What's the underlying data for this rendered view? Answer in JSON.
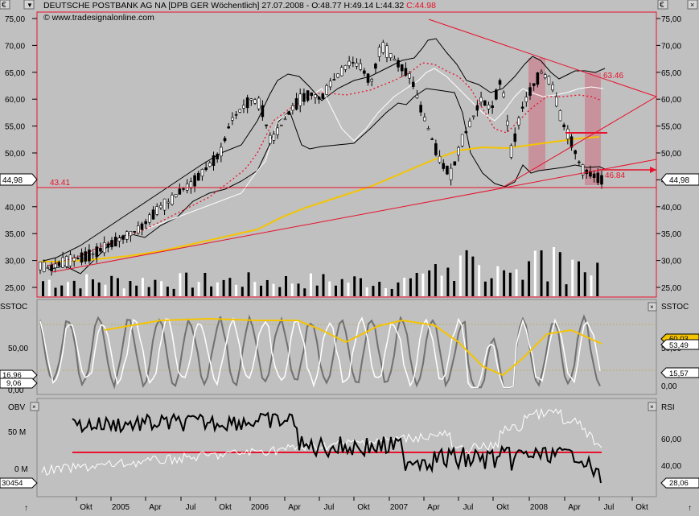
{
  "header": {
    "text": "DEUTSCHE POSTBANK AG NA [DPB GER  Wöchentlich] 27.07.2008 - O:48.77 H:49.14 L:44.32 ",
    "close_text": "C:44.98",
    "watermark": "© www.tradesignalonline.com",
    "currency": "€"
  },
  "colors": {
    "background": "#c0c0c0",
    "line_red": "#e8102a",
    "sma_yellow": "#f5c400",
    "bands_black": "#000000",
    "highlight": "#c98a96"
  },
  "chart_data": [
    {
      "type": "line",
      "panel": "price",
      "title": "DEUTSCHE POSTBANK AG NA [DPB GER  Wöchentlich]",
      "ylim": [
        22.5,
        77.5
      ],
      "y_ticks": [
        "75,00",
        "70,00",
        "65,00",
        "60,00",
        "55,00",
        "50,00",
        "45,00",
        "40,00",
        "35,00",
        "30,00",
        "25,00"
      ],
      "y_tick_values": [
        75,
        70,
        65,
        60,
        55,
        50,
        45,
        40,
        35,
        30,
        25
      ],
      "price_label_left": "44,98",
      "price_label_right": "44,98",
      "annotations": [
        "43.41",
        "63.46",
        "46.84"
      ],
      "x_labels": [
        "Okt",
        "2005",
        "Apr",
        "Jul",
        "Okt",
        "2006",
        "Apr",
        "Jul",
        "Okt",
        "2007",
        "Apr",
        "Jul",
        "Okt",
        "2008",
        "Apr",
        "Jul",
        "Okt"
      ],
      "series": [
        {
          "values": [
            29,
            28.5,
            29.5,
            30,
            30.5,
            31,
            32,
            33,
            34,
            35,
            36,
            38,
            40,
            41,
            43,
            44,
            46,
            48,
            50,
            56,
            58,
            60,
            59,
            52,
            55,
            58,
            60,
            61,
            60,
            63,
            65,
            67,
            66,
            63,
            70,
            68,
            66,
            64,
            58,
            53,
            48,
            46,
            52,
            56,
            60,
            58,
            64,
            50,
            58,
            62,
            65,
            63,
            56,
            52,
            47,
            46,
            45
          ]
        },
        {
          "name": "SMA",
          "values": [
            28,
            30,
            32,
            35,
            40,
            45,
            48,
            51,
            52,
            52.5,
            53
          ]
        }
      ],
      "volume_bars_count": 90
    },
    {
      "type": "line",
      "panel": "stochastic",
      "ylabel": "SSTOC",
      "y_ticks": [
        "50,00",
        "0,00"
      ],
      "left_labels": [
        "16,96",
        "9,06"
      ],
      "right_labels": [
        "60,03",
        "53,49",
        "15,57"
      ],
      "series_count": 4
    },
    {
      "type": "line",
      "panel": "obv_rsi",
      "ylabel_left": "OBV",
      "ylabel_right": "RSI",
      "left_ticks": [
        "50 M",
        "0 M"
      ],
      "left_value_label": "30454",
      "right_ticks": [
        "60,00",
        "40,00"
      ],
      "right_value_label": "28,06"
    }
  ]
}
